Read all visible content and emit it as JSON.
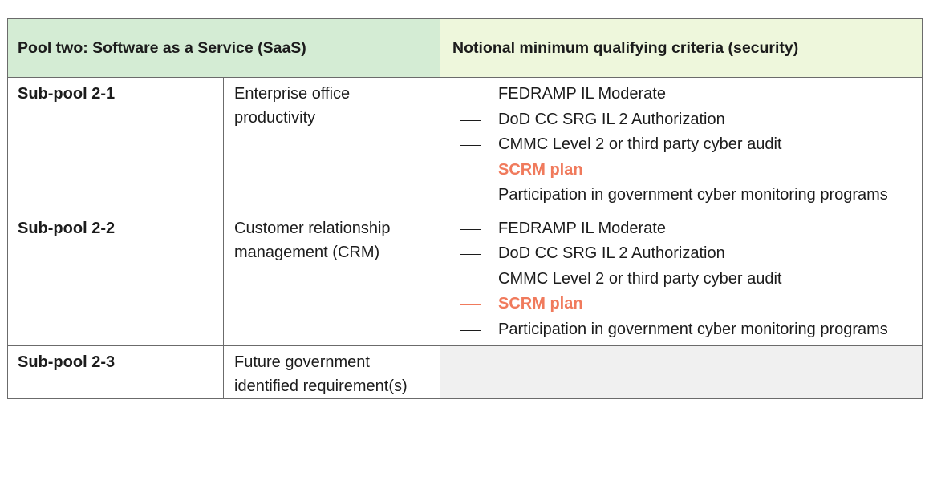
{
  "header": {
    "pool_title": "Pool two: Software as a Service (SaaS)",
    "criteria_title": "Notional minimum qualifying criteria (security)"
  },
  "rows": [
    {
      "name": "Sub-pool 2-1",
      "description": "Enterprise office productivity",
      "criteria": [
        "FEDRAMP IL Moderate",
        "DoD CC SRG IL 2 Authorization",
        "CMMC Level 2 or third party cyber audit",
        "SCRM plan",
        "Participation in government cyber monitoring programs"
      ]
    },
    {
      "name": "Sub-pool 2-2",
      "description": "Customer relationship management (CRM)",
      "criteria": [
        "FEDRAMP IL Moderate",
        "DoD CC SRG IL 2 Authorization",
        "CMMC Level 2 or third party cyber audit",
        "SCRM plan",
        "Participation in government cyber monitoring programs"
      ]
    },
    {
      "name": "Sub-pool 2-3",
      "description": "Future government identified requirement(s)",
      "criteria": []
    }
  ],
  "colors": {
    "header_left_bg": "#d4ecd4",
    "header_right_bg": "#eef7dc",
    "highlight_text": "#f07a5c",
    "empty_cell_bg": "#f0f0f0",
    "border": "#6b6b6b"
  }
}
